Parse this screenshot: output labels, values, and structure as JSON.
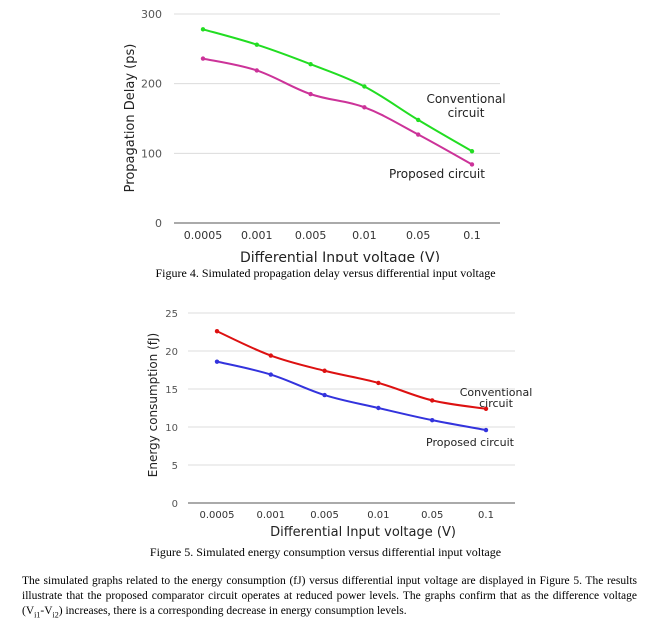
{
  "captions": {
    "figure4": "Figure 4. Simulated propagation delay versus differential input voltage",
    "figure5": "Figure 5. Simulated energy consumption versus differential input voltage"
  },
  "body": {
    "text_before": "The simulated graphs related to the energy consumption (fJ) versus differential input voltage are displayed in Figure 5. The results illustrate that the proposed comparator circuit operates at reduced power levels. The graphs confirm that as the difference voltage (",
    "v1": "V",
    "v1_sub": "i1",
    "minus": "-",
    "v2": "V",
    "v2_sub": "i2",
    "text_after": ") increases, there is a corresponding decrease in energy consumption levels."
  },
  "chart_data": [
    {
      "type": "line",
      "categories": [
        "0.0005",
        "0.001",
        "0.005",
        "0.01",
        "0.05",
        "0.1"
      ],
      "xlabel": "Differential Input voltage (V)",
      "ylabel": "Propagation Delay (ps)",
      "ylim": [
        0,
        300
      ],
      "yticks": [
        0,
        100,
        200,
        300
      ],
      "grid": true,
      "series": [
        {
          "name": "Conventional circuit",
          "label_lines": [
            "Conventional",
            "circuit"
          ],
          "color": "#22dd22",
          "values": [
            278,
            256,
            228,
            196,
            148,
            103
          ]
        },
        {
          "name": "Proposed circuit",
          "label_lines": [
            "Proposed circuit"
          ],
          "color": "#cc3399",
          "values": [
            236,
            219,
            185,
            166,
            127,
            84
          ]
        }
      ]
    },
    {
      "type": "line",
      "categories": [
        "0.0005",
        "0.001",
        "0.005",
        "0.01",
        "0.05",
        "0.1"
      ],
      "xlabel": "Differential Input voltage (V)",
      "ylabel": "Energy consumption (fJ)",
      "ylim": [
        0,
        25
      ],
      "yticks": [
        0,
        5,
        10,
        15,
        20,
        25
      ],
      "grid": true,
      "series": [
        {
          "name": "Conventional circuit",
          "label_lines": [
            "Conventional",
            "circuit"
          ],
          "color": "#dd1111",
          "values": [
            22.6,
            19.4,
            17.4,
            15.8,
            13.5,
            12.4
          ]
        },
        {
          "name": "Proposed circuit",
          "label_lines": [
            "Proposed circuit"
          ],
          "color": "#3333dd",
          "values": [
            18.6,
            16.9,
            14.2,
            12.5,
            10.9,
            9.6
          ]
        }
      ]
    }
  ]
}
